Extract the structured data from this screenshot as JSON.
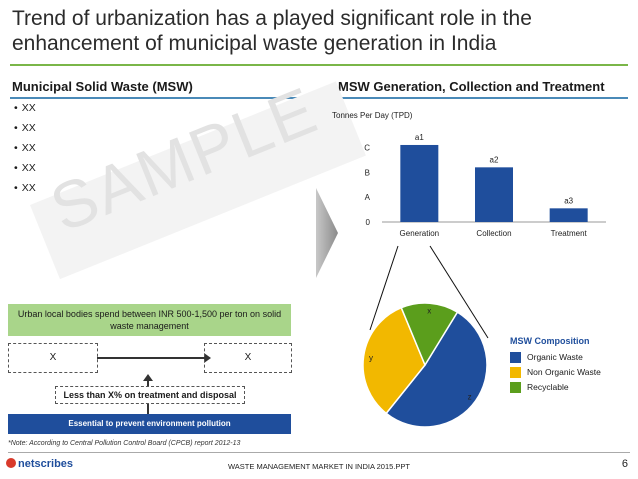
{
  "title": "Trend of urbanization has a played significant role in the enhancement of municipal waste generation in India",
  "left_section": {
    "heading": "Municipal Solid  Waste (MSW)",
    "bullets": [
      "XX",
      "XX",
      "XX",
      "XX",
      "XX"
    ],
    "watermark": "SAMPLE",
    "urban_box": "Urban local bodies spend between INR 500-1,500 per ton on solid waste management",
    "left_x": "X",
    "right_x": "X",
    "less_than": "Less than X% on treatment and disposal",
    "essential": "Essential to prevent environment pollution"
  },
  "right_section": {
    "heading": "MSW Generation, Collection and Treatment"
  },
  "colors": {
    "bar": "#1f4e9c",
    "organic": "#1f4e9c",
    "non_organic": "#f2b800",
    "recyclable": "#5b9e1c",
    "accent_green": "#7ab648",
    "box_green": "#a9d58a",
    "box_blue": "#1f4e9c"
  },
  "chart_data": [
    {
      "type": "bar",
      "ylabel": "Tonnes Per Day (TPD)",
      "yticks": [
        "0",
        "A",
        "B",
        "C"
      ],
      "categories": [
        "Generation",
        "Collection",
        "Treatment"
      ],
      "values": [
        3.1,
        2.2,
        0.55
      ],
      "data_labels": [
        "a1",
        "a2",
        "a3"
      ],
      "ylim": [
        0,
        3.3
      ]
    },
    {
      "type": "pie",
      "legend_title": "MSW Composition",
      "legend_placement": "right",
      "slices": [
        {
          "legend": "Organic Waste",
          "label": "z",
          "value": 52
        },
        {
          "legend": "Non Organic Waste",
          "label": "y",
          "value": 33
        },
        {
          "legend": "Recyclable",
          "label": "x",
          "value": 15
        }
      ]
    }
  ],
  "footnote": "*Note: According to Central Pollution Control Board (CPCB) report 2012-13",
  "footer": {
    "logo": "netscribes",
    "report": "WASTE MANAGEMENT MARKET IN INDIA 2015.PPT",
    "page": "6"
  }
}
